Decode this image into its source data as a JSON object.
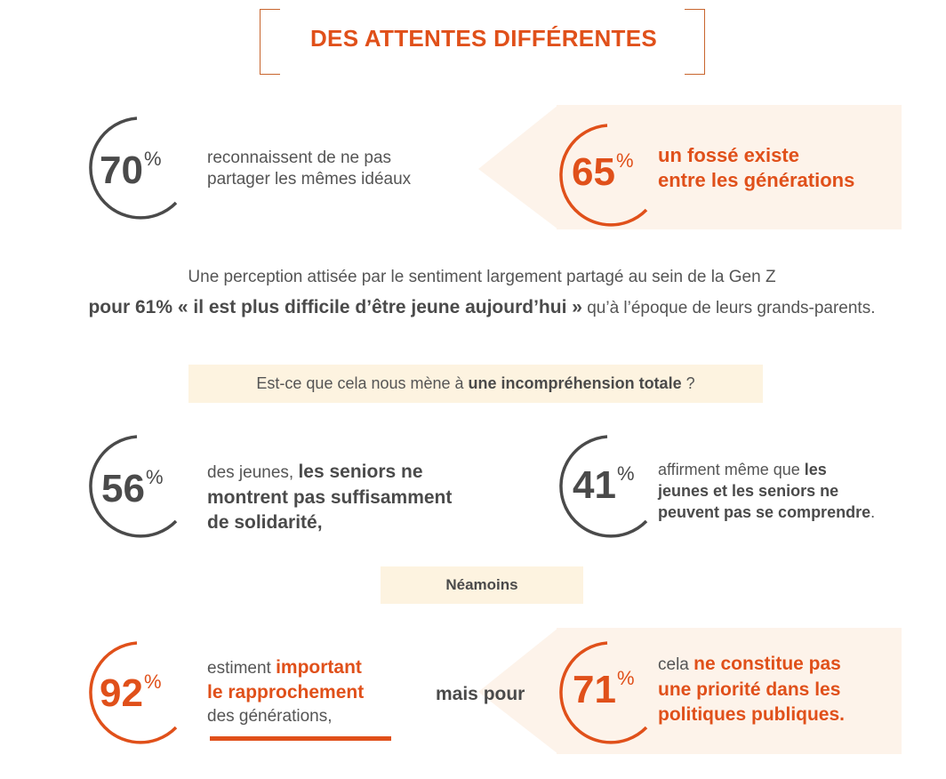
{
  "header": {
    "title": "DES ATTENTES DIFFÉRENTES"
  },
  "stats": {
    "s70": {
      "value": "70",
      "unit": "%",
      "text_l1": "reconnaissent de ne pas",
      "text_l2": "partager les mêmes idéaux"
    },
    "s65": {
      "value": "65",
      "unit": "%",
      "text_l1": "un fossé existe",
      "text_l2": "entre les générations"
    },
    "s56": {
      "value": "56",
      "unit": "%",
      "text_pre": "des jeunes, ",
      "text_b1": "les seniors ne",
      "text_b2": "montrent pas suffisamment",
      "text_b3": "de solidarité,"
    },
    "s41": {
      "value": "41",
      "unit": "%",
      "text_pre": "affirment même que ",
      "text_b1": "les",
      "text_b2": "jeunes et les seniors ne",
      "text_b3": "peuvent pas se comprendre",
      "text_post": "."
    },
    "s92": {
      "value": "92",
      "unit": "%",
      "text_pre": "estiment ",
      "text_b1": "important",
      "text_b2": "le rapprochement",
      "text_l3": "des générations,"
    },
    "s71": {
      "value": "71",
      "unit": "%",
      "text_pre": "cela ",
      "text_b1": "ne constitue pas",
      "text_b2": "une priorité dans les",
      "text_b3": "politiques publiques."
    }
  },
  "perception": {
    "line1": "Une perception attisée par le sentiment largement partagé au sein de la Gen Z",
    "line2_bold": "pour 61% « il est plus difficile d’être jeune aujourd’hui »",
    "line2_rest": " qu’à l’époque de leurs grands-parents."
  },
  "question": {
    "pre": "Est-ce que cela nous mène à ",
    "bold": "une incompréhension totale",
    "post": " ?"
  },
  "neamoins": "Néamoins",
  "mais_pour": "mais pour",
  "colors": {
    "orange": "#e0501a",
    "gray": "#4a4a4a",
    "panel": "#fdf3ea",
    "band": "#fdf3e0"
  }
}
